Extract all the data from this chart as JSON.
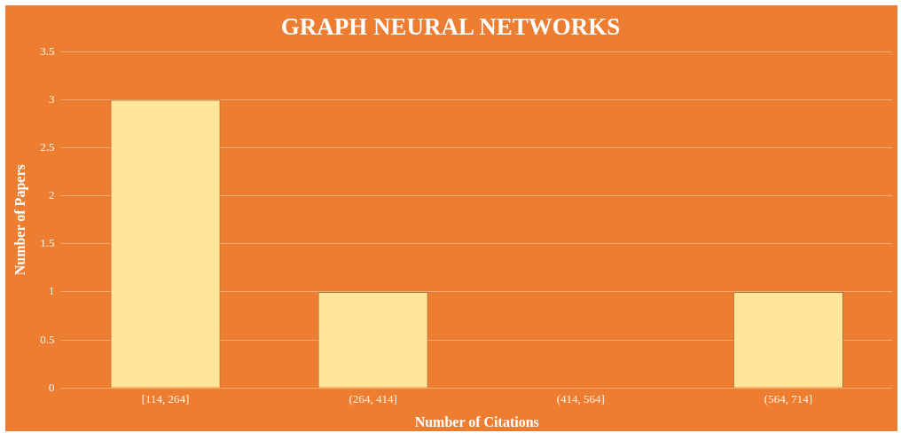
{
  "chart_data": {
    "type": "bar",
    "title": "GRAPH NEURAL NETWORKS",
    "xlabel": "Number of Citations",
    "ylabel": "Number of Papers",
    "categories": [
      "[114, 264]",
      "(264, 414]",
      "(414, 564]",
      "(564, 714]"
    ],
    "values": [
      3,
      1,
      0,
      1
    ],
    "color": "#fee599",
    "ylim": [
      0,
      3.5
    ],
    "yticks": [
      0,
      0.5,
      1,
      1.5,
      2,
      2.5,
      3,
      3.5
    ],
    "grid": "y",
    "legend": false
  }
}
